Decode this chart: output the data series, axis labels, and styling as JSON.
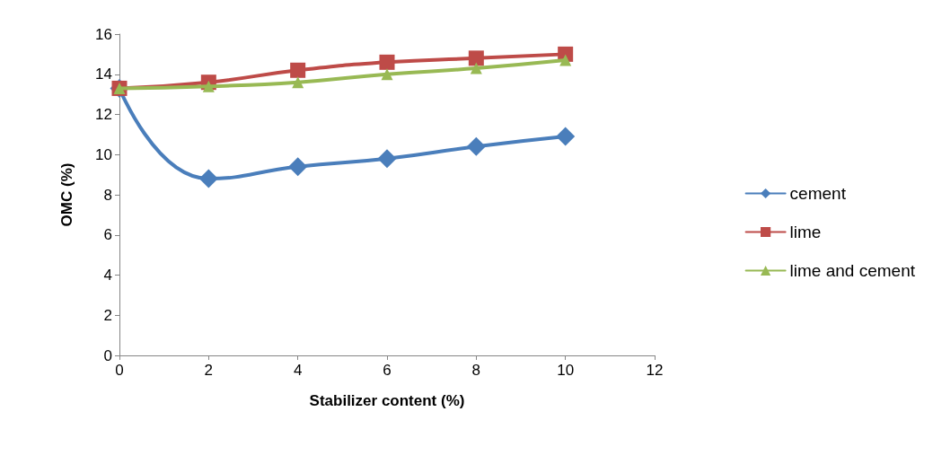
{
  "chart_data": {
    "type": "line",
    "xlabel": "Stabilizer content (%)",
    "ylabel": "OMC (%)",
    "x": [
      0,
      2,
      4,
      6,
      8,
      10
    ],
    "series": [
      {
        "name": "cement",
        "color": "#4a7ebb",
        "marker": "diamond",
        "values": [
          13.3,
          8.8,
          9.4,
          9.8,
          10.4,
          10.9
        ]
      },
      {
        "name": "lime",
        "color": "#be4b48",
        "marker": "square",
        "values": [
          13.3,
          13.6,
          14.2,
          14.6,
          14.8,
          15.0
        ]
      },
      {
        "name": "lime and cement",
        "color": "#98b954",
        "marker": "triangle",
        "values": [
          13.3,
          13.4,
          13.6,
          14.0,
          14.3,
          14.7
        ]
      }
    ],
    "xlim": [
      0,
      12
    ],
    "xticks": [
      0,
      2,
      4,
      6,
      8,
      10,
      12
    ],
    "ylim": [
      0,
      16
    ],
    "yticks": [
      0,
      2,
      4,
      6,
      8,
      10,
      12,
      14,
      16
    ],
    "grid": false,
    "legend": "right",
    "line_style": "solid"
  }
}
